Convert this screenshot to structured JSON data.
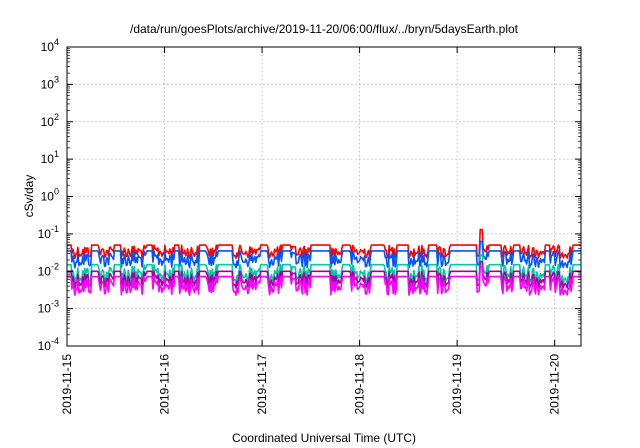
{
  "chart_data": {
    "type": "line",
    "title": "/data/run/goesPlots/archive/2019-11-20/06:00/flux/../bryn/5daysEarth.plot",
    "xlabel": "Coordinated Universal Time (UTC)",
    "ylabel": "cSv/day",
    "yscale": "log",
    "ylim_exp": [
      -4,
      4
    ],
    "y_ticks": [
      {
        "base": "10",
        "exp": "-4"
      },
      {
        "base": "10",
        "exp": "-3"
      },
      {
        "base": "10",
        "exp": "-2"
      },
      {
        "base": "10",
        "exp": "-1"
      },
      {
        "base": "10",
        "exp": "0"
      },
      {
        "base": "10",
        "exp": "1"
      },
      {
        "base": "10",
        "exp": "2"
      },
      {
        "base": "10",
        "exp": "3"
      },
      {
        "base": "10",
        "exp": "4"
      }
    ],
    "x_range_days": [
      0,
      5.27
    ],
    "x_ticks": [
      {
        "day": 0,
        "label": "2019-11-15"
      },
      {
        "day": 1,
        "label": "2019-11-16"
      },
      {
        "day": 2,
        "label": "2019-11-17"
      },
      {
        "day": 3,
        "label": "2019-11-18"
      },
      {
        "day": 4,
        "label": "2019-11-19"
      },
      {
        "day": 5,
        "label": "2019-11-20"
      }
    ],
    "grid": true,
    "legend": "none",
    "series": [
      {
        "color": "#ff0000",
        "baseline": 0.05,
        "spike_depth": 0.35
      },
      {
        "color": "#0055ff",
        "baseline": 0.035,
        "spike_depth": 0.45
      },
      {
        "color": "#00c8a0",
        "baseline": 0.015,
        "spike_depth": 0.5
      },
      {
        "color": "#a000a0",
        "baseline": 0.01,
        "spike_depth": 0.45
      },
      {
        "color": "#ff00ff",
        "baseline": 0.0072,
        "spike_depth": 0.5
      }
    ],
    "bursts_days": [
      [
        0.05,
        0.25
      ],
      [
        0.32,
        0.48
      ],
      [
        0.55,
        0.82
      ],
      [
        0.88,
        1.1
      ],
      [
        1.15,
        1.35
      ],
      [
        1.42,
        1.55
      ],
      [
        1.7,
        1.98
      ],
      [
        2.05,
        2.2
      ],
      [
        2.3,
        2.5
      ],
      [
        2.7,
        2.82
      ],
      [
        2.9,
        3.12
      ],
      [
        3.25,
        3.38
      ],
      [
        3.5,
        3.7
      ],
      [
        3.8,
        3.93
      ],
      [
        4.2,
        4.32
      ],
      [
        4.45,
        4.58
      ],
      [
        4.65,
        4.9
      ],
      [
        4.95,
        5.18
      ]
    ],
    "notable_peak": {
      "day": 4.25,
      "value": 0.13
    }
  }
}
